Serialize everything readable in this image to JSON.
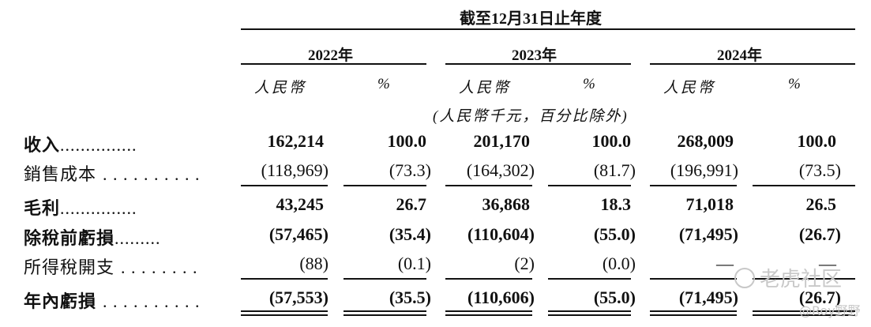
{
  "header": {
    "period": "截至12月31日止年度",
    "years": [
      "2022年",
      "2023年",
      "2024年"
    ],
    "currency_label": "人民幣",
    "percent_label": "%",
    "unit_note": "(人民幣千元，百分比除外)"
  },
  "rows": [
    {
      "label": "收入",
      "dots": "...............",
      "bold": true,
      "values": [
        "162,214",
        "100.0",
        "201,170",
        "100.0",
        "268,009",
        "100.0"
      ]
    },
    {
      "label": "銷售成本",
      "dots": ". . . . . . . . . .",
      "bold": false,
      "values": [
        "(118,969)",
        "(73.3)",
        "(164,302)",
        "(81.7)",
        "(196,991)",
        "(73.5)"
      ]
    },
    {
      "label": "毛利",
      "dots": "...............",
      "bold": true,
      "values": [
        "43,245",
        "26.7",
        "36,868",
        "18.3",
        "71,018",
        "26.5"
      ]
    },
    {
      "label": "除稅前虧損",
      "dots": ".........",
      "bold": true,
      "values": [
        "(57,465)",
        "(35.4)",
        "(110,604)",
        "(55.0)",
        "(71,495)",
        "(26.7)"
      ]
    },
    {
      "label": "所得稅開支",
      "dots": ". . . . . . . .",
      "bold": false,
      "values": [
        "(88)",
        "(0.1)",
        "(2)",
        "(0.0)",
        "—",
        "—"
      ]
    },
    {
      "label": "年內虧損",
      "dots": ". . . . . . . . . .",
      "bold": true,
      "values": [
        "(57,553)",
        "(35.5)",
        "(110,606)",
        "(55.0)",
        "(71,495)",
        "(26.7)"
      ]
    }
  ],
  "watermark": {
    "text": "老虎社区",
    "handle": "@Roy野野"
  }
}
